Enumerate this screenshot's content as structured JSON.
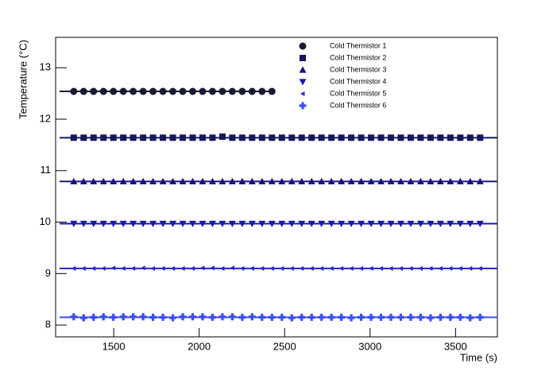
{
  "chart_data": {
    "type": "scatter",
    "xlabel": "Time (s)",
    "ylabel": "Temperature (°C)",
    "xlim": [
      1160,
      3745
    ],
    "ylim": [
      7.77,
      13.59
    ],
    "xticks": [
      1500,
      2000,
      2500,
      3000,
      3500
    ],
    "yticks": [
      8,
      9,
      10,
      11,
      12,
      13
    ],
    "legend": "top-right",
    "x": [
      1266,
      1324,
      1382,
      1440,
      1498,
      1556,
      1614,
      1672,
      1730,
      1788,
      1846,
      1904,
      1962,
      2020,
      2078,
      2136,
      2194,
      2252,
      2310,
      2368,
      2426,
      2484,
      2542,
      2600,
      2658,
      2716,
      2774,
      2832,
      2890,
      2948,
      3006,
      3064,
      3122,
      3180,
      3238,
      3296,
      3354,
      3412,
      3470,
      3528,
      3586,
      3644
    ],
    "series": [
      {
        "name": "Cold Thermistor 1",
        "color": "#1a1a33",
        "marker": "circle",
        "fit": 12.54,
        "values": [
          12.54,
          12.54,
          12.54,
          12.54,
          12.54,
          12.54,
          12.54,
          12.54,
          12.54,
          12.54,
          12.54,
          12.54,
          12.54,
          12.54,
          12.54,
          12.54,
          12.54,
          12.54,
          12.54,
          12.54,
          12.54,
          null,
          null,
          null,
          null,
          null,
          null,
          null,
          null,
          null,
          null,
          null,
          null,
          null,
          null,
          null,
          null,
          null,
          null,
          null,
          null,
          null
        ]
      },
      {
        "name": "Cold Thermistor 2",
        "color": "#16165c",
        "marker": "square",
        "fit": 11.64,
        "values": [
          11.64,
          11.64,
          11.64,
          11.64,
          11.64,
          11.64,
          11.64,
          11.64,
          11.64,
          11.64,
          11.64,
          11.64,
          11.64,
          11.64,
          11.64,
          11.66,
          11.64,
          11.64,
          11.64,
          11.64,
          11.64,
          11.64,
          11.64,
          11.64,
          11.64,
          11.64,
          11.64,
          11.64,
          11.64,
          11.64,
          11.64,
          11.64,
          11.64,
          11.64,
          11.64,
          11.64,
          11.64,
          11.64,
          11.64,
          11.64,
          11.64,
          11.64
        ]
      },
      {
        "name": "Cold Thermistor 3",
        "color": "#15157a",
        "marker": "triangle-up",
        "fit": 10.79,
        "values": [
          10.79,
          10.79,
          10.79,
          10.79,
          10.79,
          10.79,
          10.79,
          10.79,
          10.79,
          10.79,
          10.79,
          10.79,
          10.79,
          10.79,
          10.79,
          10.79,
          10.79,
          10.79,
          10.79,
          10.79,
          10.79,
          10.79,
          10.79,
          10.79,
          10.79,
          10.79,
          10.79,
          10.79,
          10.79,
          10.79,
          10.79,
          10.79,
          10.79,
          10.79,
          10.79,
          10.79,
          10.79,
          10.79,
          10.79,
          10.79,
          10.79,
          10.79
        ]
      },
      {
        "name": "Cold Thermistor 4",
        "color": "#1a1aa8",
        "marker": "triangle-down",
        "fit": 9.97,
        "values": [
          9.97,
          9.97,
          9.97,
          9.97,
          9.97,
          9.97,
          9.97,
          9.97,
          9.97,
          9.97,
          9.97,
          9.97,
          9.97,
          9.97,
          9.97,
          9.97,
          9.97,
          9.97,
          9.97,
          9.97,
          9.97,
          9.97,
          9.97,
          9.97,
          9.97,
          9.97,
          9.97,
          9.97,
          9.97,
          9.97,
          9.97,
          9.97,
          9.97,
          9.97,
          9.97,
          9.97,
          9.97,
          9.97,
          9.97,
          9.97,
          9.97,
          9.97
        ]
      },
      {
        "name": "Cold Thermistor 5",
        "color": "#2424c8",
        "marker": "triangle-left",
        "fit": 9.1,
        "values": [
          9.1,
          9.1,
          9.1,
          9.1,
          9.11,
          9.1,
          9.1,
          9.11,
          9.1,
          9.1,
          9.1,
          9.1,
          9.1,
          9.11,
          9.11,
          9.1,
          9.11,
          9.1,
          9.1,
          9.1,
          9.1,
          9.1,
          9.1,
          9.1,
          9.1,
          9.1,
          9.1,
          9.1,
          9.1,
          9.1,
          9.1,
          9.1,
          9.1,
          9.1,
          9.1,
          9.1,
          9.1,
          9.1,
          9.1,
          9.1,
          9.1,
          9.1
        ]
      },
      {
        "name": "Cold Thermistor 6",
        "color": "#3a4ef0",
        "marker": "cross",
        "fit": 8.15,
        "values": [
          8.16,
          8.14,
          8.15,
          8.16,
          8.15,
          8.16,
          8.16,
          8.16,
          8.15,
          8.15,
          8.14,
          8.16,
          8.16,
          8.16,
          8.15,
          8.16,
          8.16,
          8.15,
          8.16,
          8.15,
          8.15,
          8.15,
          8.14,
          8.15,
          8.15,
          8.15,
          8.15,
          8.15,
          8.14,
          8.15,
          8.15,
          8.15,
          8.15,
          8.15,
          8.15,
          8.15,
          8.14,
          8.15,
          8.15,
          8.15,
          8.14,
          8.15
        ]
      }
    ]
  }
}
